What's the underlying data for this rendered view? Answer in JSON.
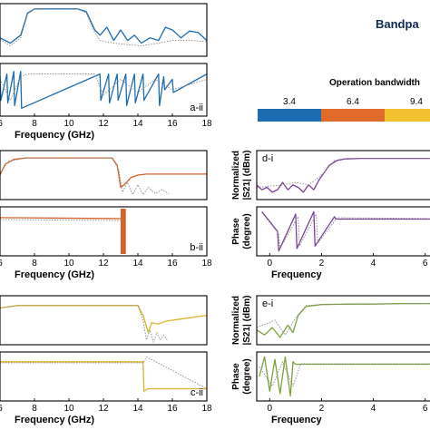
{
  "header": {
    "title": "Bandpa"
  },
  "legend": {
    "title": "Operation bandwidth",
    "entries": [
      {
        "label": "3.4",
        "color": "#1b6cb0"
      },
      {
        "label": "6.4",
        "color": "#e06a2a"
      },
      {
        "label": "9.4",
        "color": "#f2c230"
      },
      {
        "label": "",
        "color": "#7da33a"
      }
    ]
  },
  "chart_data": [
    {
      "id": "a-i",
      "type": "line",
      "panel_label": "",
      "xlabel": "",
      "ylabel": "",
      "xlim": [
        6,
        18
      ],
      "ylim": [
        0,
        1
      ],
      "x_ticks": [],
      "color": "#1b6cb0",
      "series": [
        {
          "style": "solid",
          "x": [
            6,
            6.6,
            7.2,
            7.6,
            8.0,
            10.5,
            11.0,
            11.5,
            11.8,
            12.2,
            12.6,
            13.0,
            13.4,
            13.8,
            14.2,
            14.7,
            15.2,
            15.6,
            16.0,
            16.5,
            17.0,
            17.5,
            18
          ],
          "y": [
            0.35,
            0.25,
            0.4,
            0.82,
            0.9,
            0.9,
            0.85,
            0.5,
            0.4,
            0.55,
            0.3,
            0.5,
            0.3,
            0.4,
            0.25,
            0.35,
            0.3,
            0.55,
            0.5,
            0.35,
            0.48,
            0.45,
            0.3
          ]
        },
        {
          "style": "dotted",
          "x": [
            6,
            6.6,
            7.2,
            7.6,
            8.0,
            10.5,
            11.0,
            11.5,
            11.8,
            12.6,
            13.4,
            14.2,
            15.2,
            16.0,
            17.0,
            18
          ],
          "y": [
            0.32,
            0.2,
            0.35,
            0.8,
            0.9,
            0.9,
            0.82,
            0.45,
            0.3,
            0.25,
            0.22,
            0.2,
            0.25,
            0.3,
            0.3,
            0.28
          ]
        }
      ]
    },
    {
      "id": "a-ii",
      "type": "line",
      "panel_label": "a-ii",
      "xlabel": "Frequency (GHz)",
      "ylabel": "",
      "xlim": [
        6,
        18
      ],
      "ylim": [
        0,
        1
      ],
      "x_ticks": [
        "6",
        "8",
        "10",
        "12",
        "14",
        "16",
        "18"
      ],
      "color": "#1b6cb0",
      "series": [
        {
          "style": "solid",
          "x": [
            6,
            6.05,
            6.4,
            6.45,
            6.8,
            6.85,
            7.2,
            7.25,
            11.8,
            11.85,
            12.3,
            12.35,
            12.8,
            12.85,
            13.3,
            13.35,
            13.8,
            13.85,
            14.3,
            14.35,
            15.2,
            15.25,
            15.5,
            15.55,
            16.0,
            16.05,
            18
          ],
          "y": [
            0.75,
            0.3,
            0.8,
            0.25,
            0.85,
            0.2,
            0.85,
            0.15,
            0.8,
            0.3,
            0.8,
            0.25,
            0.8,
            0.3,
            0.8,
            0.2,
            0.8,
            0.25,
            0.8,
            0.3,
            0.8,
            0.2,
            0.75,
            0.5,
            0.7,
            0.45,
            0.8
          ]
        },
        {
          "style": "dotted",
          "x": [
            6,
            6.6,
            7.2,
            7.6,
            11.5,
            12.0,
            13.0,
            14.0,
            15.0,
            16.0,
            18
          ],
          "y": [
            0.7,
            0.3,
            0.75,
            0.8,
            0.8,
            0.4,
            0.7,
            0.45,
            0.7,
            0.5,
            0.7
          ]
        }
      ]
    },
    {
      "id": "b-i",
      "type": "line",
      "panel_label": "",
      "xlabel": "",
      "ylabel": "",
      "xlim": [
        6,
        18
      ],
      "ylim": [
        0,
        1
      ],
      "x_ticks": [],
      "color": "#d4622a",
      "series": [
        {
          "style": "solid",
          "x": [
            6,
            6.3,
            6.8,
            7.5,
            12.5,
            12.8,
            13.0,
            13.2,
            13.6,
            14.0,
            14.5,
            15.0,
            16.0,
            17.0,
            18
          ],
          "y": [
            0.5,
            0.72,
            0.82,
            0.85,
            0.85,
            0.7,
            0.25,
            0.3,
            0.45,
            0.5,
            0.52,
            0.52,
            0.52,
            0.52,
            0.52
          ]
        },
        {
          "style": "dotted",
          "x": [
            6,
            6.5,
            7.5,
            12.5,
            12.9,
            13.1,
            13.4,
            13.7,
            14.0,
            14.3,
            14.6,
            15.0,
            15.4,
            15.8
          ],
          "y": [
            0.55,
            0.78,
            0.85,
            0.85,
            0.6,
            0.15,
            0.35,
            0.1,
            0.3,
            0.1,
            0.25,
            0.12,
            0.2,
            0.12
          ]
        }
      ]
    },
    {
      "id": "b-ii",
      "type": "line",
      "panel_label": "b-ii",
      "xlabel": "Frequency (GHz)",
      "ylabel": "",
      "xlim": [
        6,
        18
      ],
      "ylim": [
        0,
        1
      ],
      "x_ticks": [
        "6",
        "8",
        "10",
        "12",
        "14",
        "16",
        "18"
      ],
      "color": "#d4622a",
      "band": [
        13.0,
        13.3
      ],
      "series": [
        {
          "style": "solid",
          "x": [
            6,
            13.0
          ],
          "y": [
            0.78,
            0.76
          ]
        },
        {
          "style": "dotted",
          "x": [
            6,
            13.0
          ],
          "y": [
            0.74,
            0.72
          ]
        }
      ]
    },
    {
      "id": "c-i",
      "type": "line",
      "panel_label": "",
      "xlabel": "",
      "ylabel": "",
      "xlim": [
        6,
        18
      ],
      "ylim": [
        0,
        1
      ],
      "x_ticks": [],
      "color": "#d9b52b",
      "series": [
        {
          "style": "solid",
          "x": [
            6,
            7,
            14.0,
            14.3,
            14.6,
            14.8,
            15.2,
            15.6,
            16.0,
            17.0,
            18
          ],
          "y": [
            0.75,
            0.8,
            0.8,
            0.6,
            0.25,
            0.45,
            0.42,
            0.48,
            0.5,
            0.55,
            0.6
          ]
        },
        {
          "style": "dotted",
          "x": [
            6,
            7,
            14.0,
            14.3,
            14.5,
            14.7,
            14.9,
            15.1,
            15.3,
            15.5,
            15.7
          ],
          "y": [
            0.75,
            0.8,
            0.8,
            0.5,
            0.1,
            0.3,
            0.05,
            0.25,
            0.1,
            0.2,
            0.1
          ]
        }
      ]
    },
    {
      "id": "c-ii",
      "type": "line",
      "panel_label": "c-ii",
      "xlabel": "Frequency (GHz)",
      "ylabel": "",
      "xlim": [
        6,
        18
      ],
      "ylim": [
        0,
        1
      ],
      "x_ticks": [
        "6",
        "8",
        "10",
        "12",
        "14",
        "16",
        "18"
      ],
      "color": "#d9b52b",
      "series": [
        {
          "style": "solid",
          "x": [
            6,
            14.3,
            14.35,
            14.6,
            18
          ],
          "y": [
            0.8,
            0.8,
            0.2,
            0.25,
            0.25
          ]
        },
        {
          "style": "dotted",
          "x": [
            6,
            14.3,
            14.5,
            18
          ],
          "y": [
            0.78,
            0.78,
            0.9,
            0.25
          ]
        }
      ]
    },
    {
      "id": "d-i",
      "type": "line",
      "panel_label": "d-i",
      "xlabel": "",
      "ylabel": "Normalized |S21| (dBm)",
      "xlim": [
        -0.5,
        6.5
      ],
      "ylim": [
        0,
        1
      ],
      "x_ticks": [],
      "color": "#7b3f98",
      "series": [
        {
          "style": "solid",
          "x": [
            -0.5,
            -0.3,
            -0.1,
            0.1,
            0.3,
            0.5,
            0.7,
            0.9,
            1.1,
            1.3,
            1.5,
            1.7,
            1.9,
            2.1,
            2.3,
            2.6,
            2.9,
            3.5,
            4.5,
            5.5,
            6.5
          ],
          "y": [
            0.3,
            0.2,
            0.25,
            0.15,
            0.2,
            0.35,
            0.2,
            0.3,
            0.25,
            0.15,
            0.3,
            0.2,
            0.4,
            0.55,
            0.7,
            0.8,
            0.83,
            0.84,
            0.84,
            0.84,
            0.84
          ]
        },
        {
          "style": "dotted",
          "x": [
            -0.5,
            0.5,
            1.0,
            1.5,
            2.0,
            2.5,
            3.0,
            6.5
          ],
          "y": [
            0.25,
            0.3,
            0.35,
            0.3,
            0.5,
            0.8,
            0.84,
            0.84
          ]
        }
      ]
    },
    {
      "id": "d-ii",
      "type": "line",
      "panel_label": "",
      "xlabel": "Frequency",
      "ylabel": "Phase (degree)",
      "xlim": [
        -0.5,
        6.5
      ],
      "ylim": [
        0,
        1
      ],
      "x_ticks": [
        "0",
        "2",
        "4",
        "6"
      ],
      "color": "#7b3f98",
      "series": [
        {
          "style": "solid",
          "x": [
            -0.3,
            0.3,
            0.35,
            1.0,
            1.05,
            1.7,
            1.75,
            2.5,
            2.55,
            6.5
          ],
          "y": [
            0.9,
            0.5,
            0.1,
            0.85,
            0.15,
            0.9,
            0.2,
            0.8,
            0.75,
            0.75
          ]
        },
        {
          "style": "dotted",
          "x": [
            -0.3,
            0.35,
            0.4,
            1.1,
            1.15,
            1.8,
            1.85,
            2.6,
            6.5
          ],
          "y": [
            0.88,
            0.45,
            0.15,
            0.8,
            0.2,
            0.85,
            0.25,
            0.78,
            0.76
          ]
        }
      ]
    },
    {
      "id": "e-i",
      "type": "line",
      "panel_label": "e-i",
      "xlabel": "",
      "ylabel": "Normalized |S21| (dBm)",
      "xlim": [
        -0.5,
        6.5
      ],
      "ylim": [
        0,
        1
      ],
      "x_ticks": [],
      "color": "#7da33a",
      "series": [
        {
          "style": "solid",
          "x": [
            -0.5,
            -0.2,
            0.1,
            0.4,
            0.7,
            0.9,
            1.1,
            1.4,
            2.0,
            3.0,
            4.0,
            5.0,
            6.5
          ],
          "y": [
            0.3,
            0.2,
            0.35,
            0.15,
            0.4,
            0.25,
            0.6,
            0.78,
            0.82,
            0.83,
            0.83,
            0.84,
            0.84
          ]
        },
        {
          "style": "dotted",
          "x": [
            -0.5,
            0.2,
            0.6,
            1.0,
            1.4,
            2.0,
            6.5
          ],
          "y": [
            0.35,
            0.5,
            0.2,
            0.55,
            0.8,
            0.82,
            0.84
          ]
        }
      ]
    },
    {
      "id": "e-ii",
      "type": "line",
      "panel_label": "",
      "xlabel": "Frequency",
      "ylabel": "Phase (degree)",
      "xlim": [
        -0.5,
        6.5
      ],
      "ylim": [
        0,
        1
      ],
      "x_ticks": [
        "0",
        "2",
        "4",
        "6"
      ],
      "color": "#7da33a",
      "series": [
        {
          "style": "solid",
          "x": [
            -0.4,
            -0.2,
            0.0,
            0.2,
            0.4,
            0.6,
            0.8,
            0.9,
            1.0,
            1.3,
            6.5
          ],
          "y": [
            0.5,
            0.9,
            0.2,
            0.85,
            0.15,
            0.9,
            0.1,
            0.8,
            0.75,
            0.75,
            0.75
          ]
        },
        {
          "style": "dotted",
          "x": [
            -0.4,
            0.1,
            0.5,
            0.9,
            1.2,
            6.5
          ],
          "y": [
            0.7,
            0.3,
            0.8,
            0.3,
            0.76,
            0.76
          ]
        }
      ]
    }
  ]
}
